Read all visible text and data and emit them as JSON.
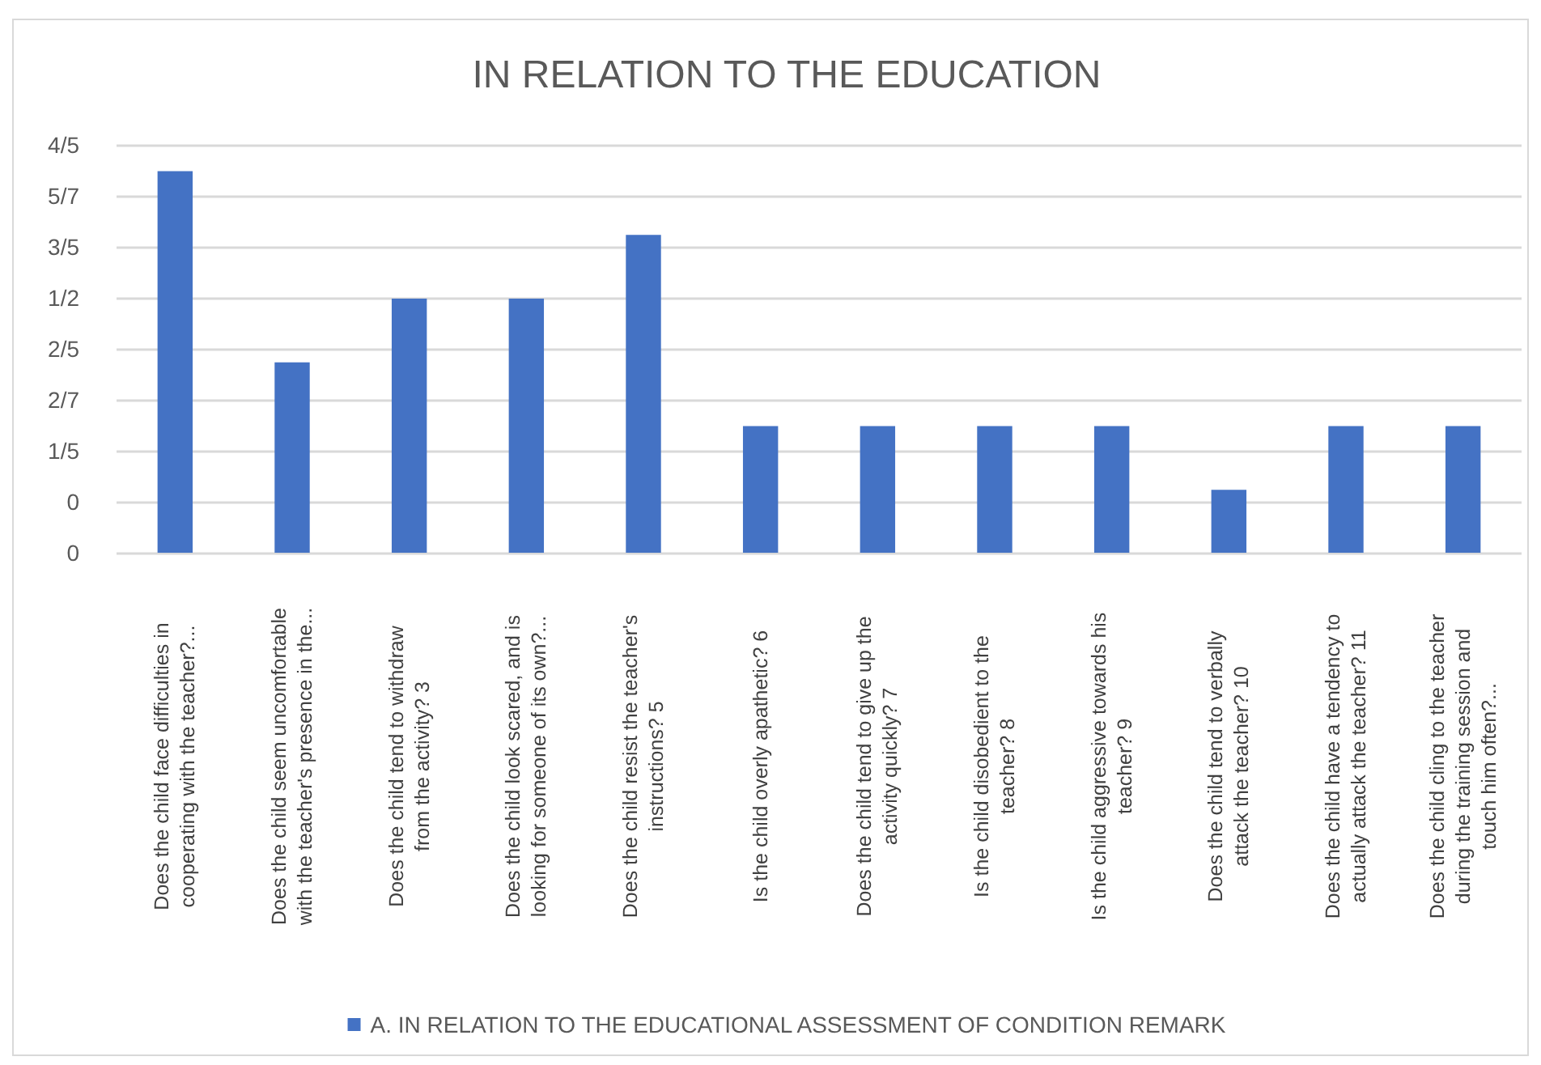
{
  "chart_data": {
    "type": "bar",
    "title": "IN RELATION TO THE EDUCATION",
    "categories": [
      "Does the child face difficulties in cooperating with the teacher?...",
      "Does the child seem uncomfortable with the teacher's presence in the...",
      "Does the child tend to withdraw from the activity? 3",
      "Does the child look scared, and is looking for someone of its own?...",
      "Does the child resist the teacher's instructions? 5",
      "Is the child overly apathetic? 6",
      "Does the child tend to give up the activity quickly? 7",
      "Is the child disobedient to the teacher? 8",
      "Is the child aggressive towards his teacher? 9",
      "Does the child tend to verbally attack the teacher? 10",
      "Does the child have a tendency to actually attack the teacher? 11",
      "Does the child cling to the teacher during the training session and touch him often?..."
    ],
    "series": [
      {
        "name": "A. IN RELATION TO THE EDUCATIONAL ASSESSMENT OF CONDITION REMARK",
        "color": "#4472c4",
        "values": [
          0.75,
          0.375,
          0.5,
          0.5,
          0.625,
          0.25,
          0.25,
          0.25,
          0.25,
          0.125,
          0.25,
          0.25
        ]
      }
    ],
    "ylim": [
      0,
      0.8
    ],
    "yticks": [
      {
        "value": 0,
        "label": "0"
      },
      {
        "value": 0.1,
        "label": "0"
      },
      {
        "value": 0.2,
        "label": "1/5"
      },
      {
        "value": 0.3,
        "label": "2/7"
      },
      {
        "value": 0.4,
        "label": "2/5"
      },
      {
        "value": 0.5,
        "label": "1/2"
      },
      {
        "value": 0.6,
        "label": "3/5"
      },
      {
        "value": 0.7,
        "label": "5/7"
      },
      {
        "value": 0.8,
        "label": "4/5"
      }
    ],
    "grid": "y",
    "legend": "bottom"
  }
}
